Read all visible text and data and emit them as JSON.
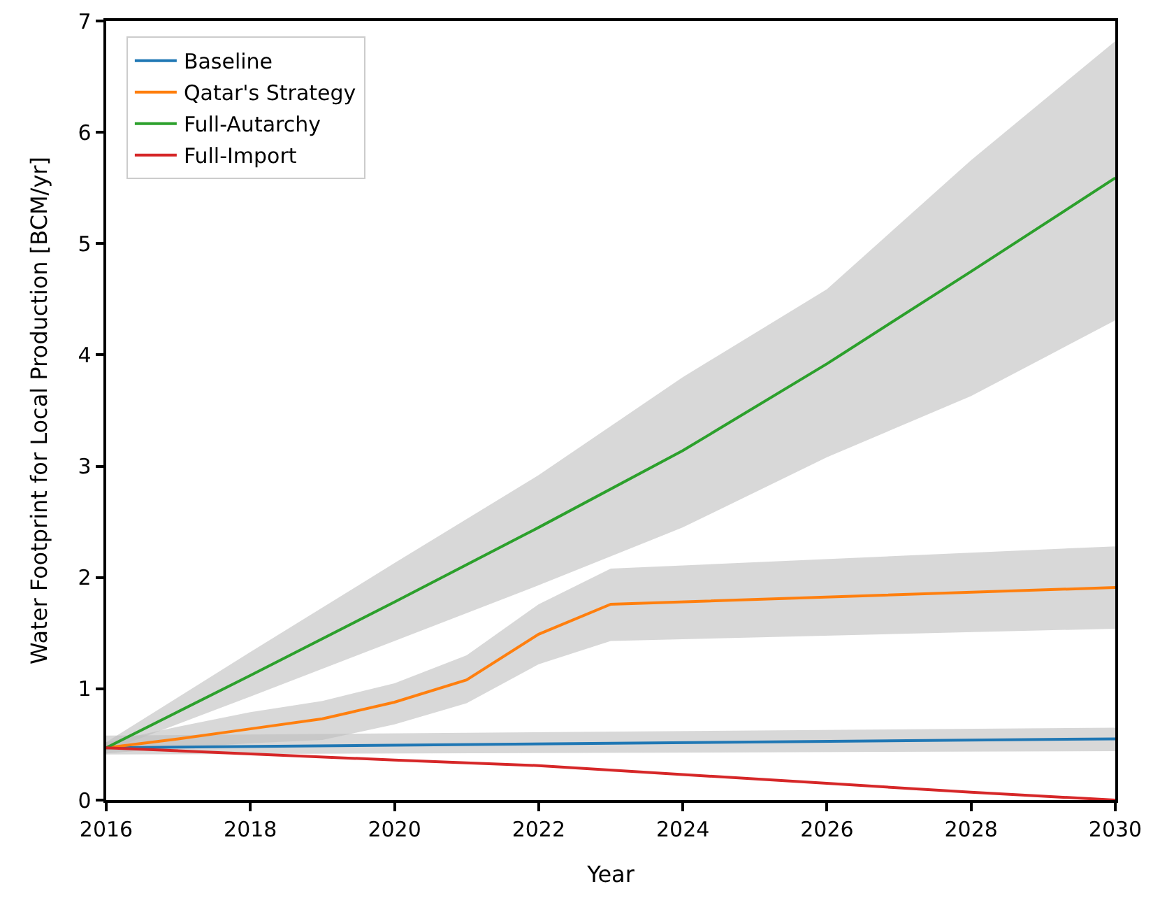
{
  "chart_data": {
    "type": "line",
    "xlabel": "Year",
    "ylabel": "Water Footprint for Local Production [BCM/yr]",
    "xlim": [
      2016,
      2030
    ],
    "ylim": [
      0,
      7
    ],
    "xticks": [
      2016,
      2018,
      2020,
      2022,
      2024,
      2026,
      2028,
      2030
    ],
    "yticks": [
      0,
      1,
      2,
      3,
      4,
      5,
      6,
      7
    ],
    "grid": false,
    "legend": "top left",
    "marker": "none",
    "line_style": "solid",
    "series": [
      {
        "name": "Baseline",
        "color": "#1f77b4",
        "x": [
          2016,
          2030
        ],
        "values": [
          0.47,
          0.55
        ],
        "lower": [
          0.41,
          0.44
        ],
        "upper": [
          0.58,
          0.65
        ]
      },
      {
        "name": "Qatar's Strategy",
        "color": "#ff7f0e",
        "x": [
          2016,
          2017,
          2018,
          2019,
          2020,
          2021,
          2022,
          2023,
          2030
        ],
        "values": [
          0.47,
          0.55,
          0.64,
          0.73,
          0.88,
          1.08,
          1.49,
          1.76,
          1.91
        ],
        "lower": [
          0.42,
          0.47,
          0.51,
          0.54,
          0.68,
          0.87,
          1.22,
          1.43,
          1.54
        ],
        "upper": [
          0.52,
          0.66,
          0.79,
          0.89,
          1.05,
          1.3,
          1.76,
          2.08,
          2.28
        ]
      },
      {
        "name": "Full-Autarchy",
        "color": "#2ca02c",
        "x": [
          2016,
          2018,
          2020,
          2022,
          2024,
          2026,
          2028,
          2030
        ],
        "values": [
          0.47,
          1.12,
          1.78,
          2.45,
          3.14,
          3.92,
          4.75,
          5.59
        ],
        "lower": [
          0.44,
          0.93,
          1.43,
          1.93,
          2.45,
          3.08,
          3.63,
          4.31
        ],
        "upper": [
          0.52,
          1.33,
          2.13,
          2.92,
          3.8,
          4.59,
          5.75,
          6.82
        ]
      },
      {
        "name": "Full-Import",
        "color": "#d62728",
        "x": [
          2016,
          2020,
          2022,
          2024,
          2026,
          2028,
          2030
        ],
        "values": [
          0.47,
          0.36,
          0.31,
          0.23,
          0.15,
          0.07,
          0
        ]
      }
    ]
  }
}
